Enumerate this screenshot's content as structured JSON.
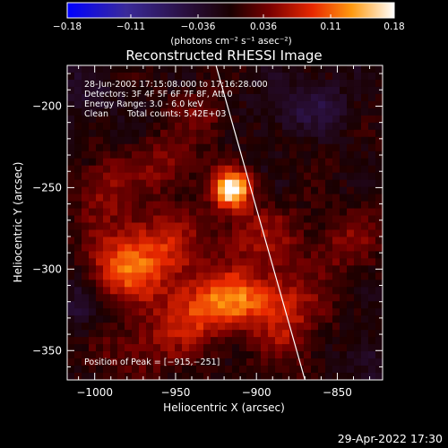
{
  "chart_data": {
    "type": "heatmap",
    "title": "Reconstructed RHESSI Image",
    "xlabel": "Heliocentric X (arcsec)",
    "ylabel": "Heliocentric Y (arcsec)",
    "xlim": [
      -1017,
      -822
    ],
    "ylim": [
      -368,
      -175
    ],
    "xticks": [
      -1000,
      -950,
      -900,
      -850
    ],
    "yticks": [
      -200,
      -250,
      -300,
      -350
    ],
    "xtick_labels": [
      "−1000",
      "−950",
      "−900",
      "−850"
    ],
    "ytick_labels": [
      "−200",
      "−250",
      "−300",
      "−350"
    ],
    "colorbar": {
      "range": [
        -0.18,
        0.18
      ],
      "ticks": [
        -0.18,
        -0.11,
        -0.036,
        0.036,
        0.11,
        0.18
      ],
      "tick_labels": [
        "−0.18",
        "−0.11",
        "−0.036",
        "0.036",
        "0.11",
        "0.18"
      ],
      "unit_label": "(photons cm⁻² s⁻¹ asec⁻²)"
    },
    "annotations": [
      "28-Jun-2002 17:15:08.000 to 17:16:28.000",
      "Detectors: 3F 4F 5F 6F 7F 8F, Att 0",
      "Energy Range: 3.0 - 6.0 keV",
      "Clean",
      "Total counts: 5.42E+03"
    ],
    "peak_label": "Position of Peak = [−915,−251]",
    "peak": {
      "x": -915,
      "y": -251
    },
    "limb_line": [
      [
        -925,
        -175
      ],
      [
        -870,
        -368
      ]
    ],
    "footer_timestamp": "29-Apr-2022 17:30",
    "sources": [
      {
        "x": -915,
        "y": -251,
        "value": 0.18,
        "sigma_x": 8,
        "sigma_y": 8
      },
      {
        "x": -912,
        "y": -318,
        "value": 0.1,
        "sigma_x": 18,
        "sigma_y": 12
      },
      {
        "x": -963,
        "y": -290,
        "value": 0.08,
        "sigma_x": 20,
        "sigma_y": 18
      },
      {
        "x": -985,
        "y": -300,
        "value": 0.07,
        "sigma_x": 14,
        "sigma_y": 14
      },
      {
        "x": -940,
        "y": -330,
        "value": 0.07,
        "sigma_x": 18,
        "sigma_y": 14
      },
      {
        "x": -880,
        "y": -330,
        "value": 0.06,
        "sigma_x": 15,
        "sigma_y": 20
      },
      {
        "x": -900,
        "y": -280,
        "value": 0.05,
        "sigma_x": 20,
        "sigma_y": 14
      },
      {
        "x": -995,
        "y": -250,
        "value": 0.05,
        "sigma_x": 12,
        "sigma_y": 14
      },
      {
        "x": -955,
        "y": -235,
        "value": 0.05,
        "sigma_x": 14,
        "sigma_y": 12
      },
      {
        "x": -975,
        "y": -350,
        "value": 0.04,
        "sigma_x": 16,
        "sigma_y": 12
      },
      {
        "x": -845,
        "y": -285,
        "value": 0.04,
        "sigma_x": 14,
        "sigma_y": 14
      },
      {
        "x": -930,
        "y": -205,
        "value": 0.04,
        "sigma_x": 12,
        "sigma_y": 10
      },
      {
        "x": -870,
        "y": -200,
        "value": -0.04,
        "sigma_x": 22,
        "sigma_y": 12
      },
      {
        "x": -1005,
        "y": -195,
        "value": -0.03,
        "sigma_x": 12,
        "sigma_y": 14
      },
      {
        "x": -1010,
        "y": -325,
        "value": -0.03,
        "sigma_x": 10,
        "sigma_y": 14
      },
      {
        "x": -830,
        "y": -355,
        "value": -0.03,
        "sigma_x": 12,
        "sigma_y": 12
      }
    ]
  }
}
